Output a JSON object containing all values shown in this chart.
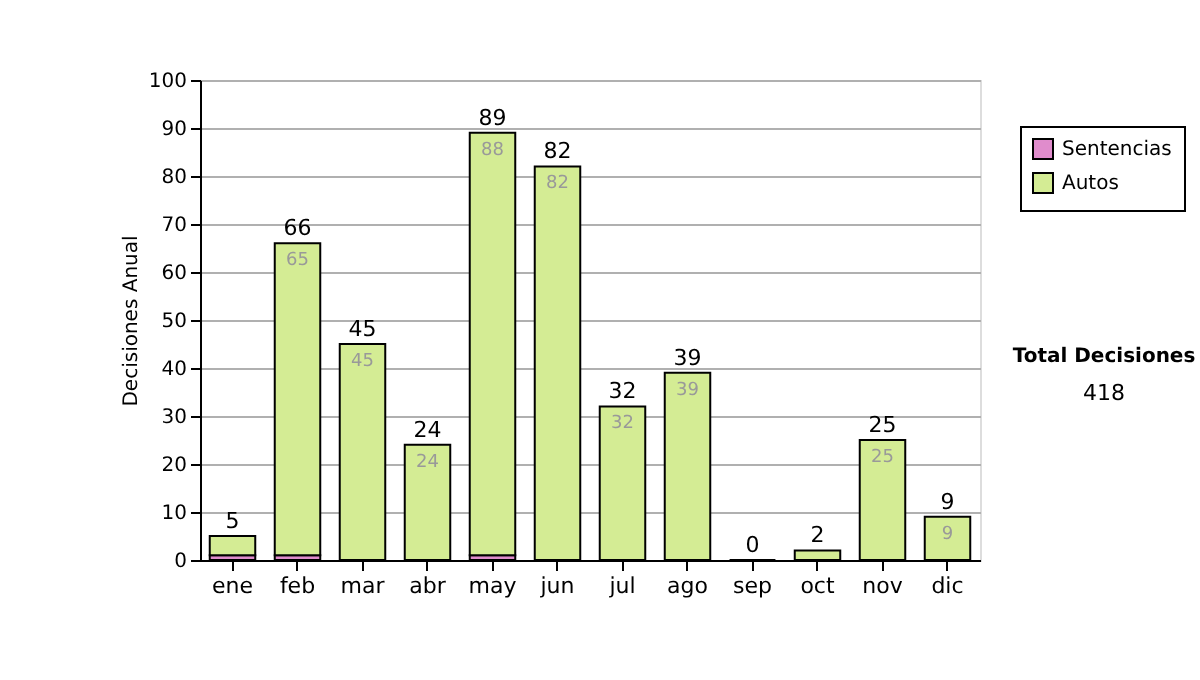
{
  "chart_data": {
    "type": "bar",
    "stacked": true,
    "ylabel": "Decisiones Anual",
    "categories": [
      "ene",
      "feb",
      "mar",
      "abr",
      "may",
      "jun",
      "jul",
      "ago",
      "sep",
      "oct",
      "nov",
      "dic"
    ],
    "series": [
      {
        "name": "Sentencias",
        "color": "#e08ccc",
        "values": [
          1,
          1,
          0,
          0,
          1,
          0,
          0,
          0,
          0,
          0,
          0,
          0
        ]
      },
      {
        "name": "Autos",
        "color": "#d4ec94",
        "values": [
          4,
          65,
          45,
          24,
          88,
          82,
          32,
          39,
          0,
          2,
          25,
          9
        ],
        "value_labels": [
          null,
          "65",
          "45",
          "24",
          "88",
          "82",
          "32",
          "39",
          null,
          null,
          "25",
          "9"
        ]
      }
    ],
    "totals": [
      "5",
      "66",
      "45",
      "24",
      "89",
      "82",
      "32",
      "39",
      "0",
      "2",
      "25",
      "9"
    ],
    "ylim": [
      0,
      100
    ],
    "yticks": [
      0,
      10,
      20,
      30,
      40,
      50,
      60,
      70,
      80,
      90,
      100
    ],
    "grid": "y",
    "legend": "right",
    "annotations": [
      "Total Decisiones",
      "418"
    ]
  }
}
